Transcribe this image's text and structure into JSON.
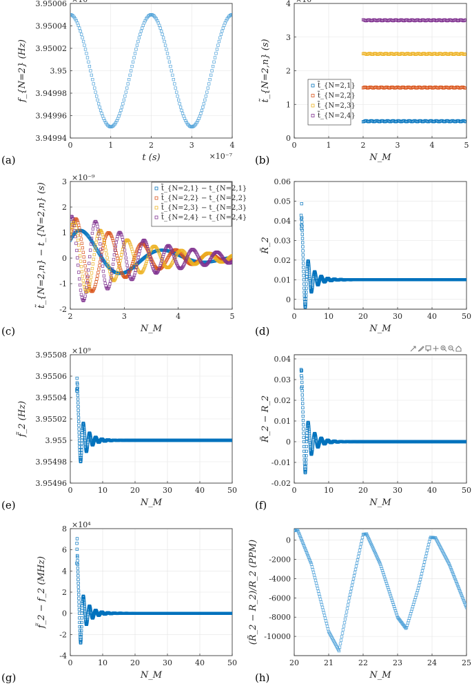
{
  "toolbar": {
    "icons": [
      "export-icon",
      "brush-icon",
      "data-tips-icon",
      "pan-icon",
      "zoom-in-icon",
      "zoom-out-icon",
      "home-icon"
    ]
  },
  "chart_data": [
    {
      "id": "a",
      "panel_label": "(a)",
      "type": "scatter",
      "xlabel": "t (s)",
      "ylabel": "f_{N=2} (Hz)",
      "x_exponent": "×10⁻⁷",
      "y_exponent": "×10⁹",
      "xlim": [
        0,
        4
      ],
      "ylim": [
        3.94994,
        3.95006
      ],
      "xticks": [
        0,
        1,
        2,
        3,
        4
      ],
      "xticklabels": [
        "0",
        "1",
        "2",
        "3",
        "4"
      ],
      "yticks": [
        3.94994,
        3.94996,
        3.94998,
        3.95,
        3.95002,
        3.95004,
        3.95006
      ],
      "yticklabels": [
        "3.94994",
        "3.94996",
        "3.94998",
        "3.95",
        "3.95002",
        "3.95004",
        "3.95006"
      ],
      "series": [
        {
          "color": "#4a9fd8",
          "description": "cosine, center 3.95, amplitude 0.00005, period 2 (×10⁻⁷ s), max at t=0",
          "x": [
            0,
            0.1,
            0.2,
            0.3,
            0.4,
            0.5,
            0.6,
            0.7,
            0.8,
            0.9,
            1.0,
            1.1,
            1.2,
            1.3,
            1.4,
            1.5,
            1.6,
            1.7,
            1.8,
            1.9,
            2.0,
            2.1,
            2.2,
            2.3,
            2.4,
            2.5,
            2.6,
            2.7,
            2.8,
            2.9,
            3.0,
            3.1,
            3.2,
            3.3,
            3.4,
            3.5,
            3.6,
            3.7,
            3.8,
            3.9,
            4.0
          ],
          "y": [
            3.95005,
            3.950048,
            3.95004,
            3.950029,
            3.950015,
            3.95,
            3.949985,
            3.949971,
            3.94996,
            3.949952,
            3.94995,
            3.949952,
            3.94996,
            3.949971,
            3.949985,
            3.95,
            3.950015,
            3.950029,
            3.95004,
            3.950048,
            3.95005,
            3.950048,
            3.95004,
            3.950029,
            3.950015,
            3.95,
            3.949985,
            3.949971,
            3.94996,
            3.949952,
            3.94995,
            3.949952,
            3.94996,
            3.949971,
            3.949985,
            3.95,
            3.950015,
            3.950029,
            3.95004,
            3.950048,
            3.95005
          ]
        }
      ]
    },
    {
      "id": "b",
      "panel_label": "(b)",
      "type": "scatter",
      "xlabel": "N_M",
      "ylabel": "t̃_{N=2,n} (s)",
      "y_exponent": "×10⁻⁷",
      "xlim": [
        0,
        5
      ],
      "ylim": [
        0,
        4
      ],
      "xticks": [
        0,
        1,
        2,
        3,
        4,
        5
      ],
      "xticklabels": [
        "0",
        "1",
        "2",
        "3",
        "4",
        "5"
      ],
      "yticks": [
        0,
        1,
        2,
        3,
        4
      ],
      "yticklabels": [
        "0",
        "1",
        "2",
        "3",
        "4"
      ],
      "legend": {
        "location": "middle-left"
      },
      "series": [
        {
          "name": "t̃_{N=2,1}",
          "color": "#0072bd",
          "x_range": [
            2,
            5
          ],
          "value": 0.5
        },
        {
          "name": "t̃_{N=2,2}",
          "color": "#d95319",
          "x_range": [
            2,
            5
          ],
          "value": 1.5
        },
        {
          "name": "t̃_{N=2,3}",
          "color": "#edb120",
          "x_range": [
            2,
            5
          ],
          "value": 2.5
        },
        {
          "name": "t̃_{N=2,4}",
          "color": "#7e2f8e",
          "x_range": [
            2,
            5
          ],
          "value": 3.5
        }
      ]
    },
    {
      "id": "c",
      "panel_label": "(c)",
      "type": "scatter",
      "xlabel": "N_M",
      "ylabel": "t̃_{N=2,n} − t_{N=2,n} (s)",
      "y_exponent": "×10⁻⁹",
      "xlim": [
        2,
        5
      ],
      "ylim": [
        -2,
        3
      ],
      "xticks": [
        2,
        3,
        4,
        5
      ],
      "xticklabels": [
        "2",
        "3",
        "4",
        "5"
      ],
      "yticks": [
        -2,
        -1,
        0,
        1,
        2,
        3
      ],
      "yticklabels": [
        "-2",
        "-1",
        "0",
        "1",
        "2",
        "3"
      ],
      "legend": {
        "location": "top-right"
      },
      "series": [
        {
          "name": "t̃_{N=2,1} − t_{N=2,1}",
          "color": "#0072bd",
          "amplitude": 1.35,
          "period": 1.55,
          "decay": 0.85,
          "phase_peak_at": 2.2
        },
        {
          "name": "t̃_{N=2,2} − t_{N=2,2}",
          "color": "#d95319",
          "amplitude": 1.9,
          "period": 0.62,
          "decay": 0.9,
          "phase_peak_at": 2.1
        },
        {
          "name": "t̃_{N=2,3} − t_{N=2,3}",
          "color": "#edb120",
          "amplitude": 1.75,
          "period": 0.5,
          "decay": 0.85,
          "phase_peak_at": 2.06
        },
        {
          "name": "t̃_{N=2,4} − t_{N=2,4}",
          "color": "#7e2f8e",
          "amplitude": 2.1,
          "period": 0.45,
          "decay": 0.8,
          "phase_peak_at": 2.02
        }
      ]
    },
    {
      "id": "d",
      "panel_label": "(d)",
      "type": "scatter",
      "xlabel": "N_M",
      "ylabel": "R̃_2",
      "xlim": [
        0,
        50
      ],
      "ylim": [
        -0.005,
        0.06
      ],
      "xticks": [
        0,
        10,
        20,
        30,
        40,
        50
      ],
      "xticklabels": [
        "0",
        "10",
        "20",
        "30",
        "40",
        "50"
      ],
      "yticks": [
        0,
        0.01,
        0.02,
        0.03,
        0.04,
        0.05,
        0.06
      ],
      "yticklabels": [
        "0",
        "0.01",
        "0.02",
        "0.03",
        "0.04",
        "0.05",
        "0.06"
      ],
      "series": [
        {
          "color": "#0072bd",
          "steady_value": 0.01,
          "peak": 0.052,
          "trough": -0.004,
          "x_start": 2,
          "x_end": 50
        }
      ]
    },
    {
      "id": "e",
      "panel_label": "(e)",
      "type": "scatter",
      "xlabel": "N_M",
      "ylabel": "f̃_2 (Hz)",
      "y_exponent": "×10⁹",
      "xlim": [
        0,
        50
      ],
      "ylim": [
        3.95496,
        3.95508
      ],
      "xticks": [
        0,
        10,
        20,
        30,
        40,
        50
      ],
      "xticklabels": [
        "0",
        "10",
        "20",
        "30",
        "40",
        "50"
      ],
      "yticks": [
        3.95496,
        3.95498,
        3.955,
        3.95502,
        3.95504,
        3.95506,
        3.95508
      ],
      "yticklabels": [
        "3.95496",
        "3.95498",
        "3.955",
        "3.95502",
        "3.95504",
        "3.95506",
        "3.95508"
      ],
      "series": [
        {
          "color": "#0072bd",
          "steady_value": 3.955,
          "peak": 3.95507,
          "trough": 3.95498,
          "x_start": 2,
          "x_end": 50
        }
      ]
    },
    {
      "id": "f",
      "panel_label": "(f)",
      "type": "scatter",
      "xlabel": "N_M",
      "ylabel": "R̃_2 − R_2",
      "xlim": [
        0,
        50
      ],
      "ylim": [
        -0.02,
        0.042
      ],
      "xticks": [
        0,
        10,
        20,
        30,
        40,
        50
      ],
      "xticklabels": [
        "0",
        "10",
        "20",
        "30",
        "40",
        "50"
      ],
      "yticks": [
        -0.02,
        -0.01,
        0,
        0.01,
        0.02,
        0.03,
        0.04
      ],
      "yticklabels": [
        "-0.02",
        "-0.01",
        "0",
        "0.01",
        "0.02",
        "0.03",
        "0.04"
      ],
      "series": [
        {
          "color": "#0072bd",
          "steady_value": 0,
          "peak": 0.041,
          "trough": -0.015,
          "x_start": 2,
          "x_end": 50
        }
      ]
    },
    {
      "id": "g",
      "panel_label": "(g)",
      "type": "scatter",
      "xlabel": "N_M",
      "ylabel": "f̃_2 − f_2 (MHz)",
      "y_exponent": "×10⁴",
      "xlim": [
        0,
        50
      ],
      "ylim": [
        -4,
        8
      ],
      "xticks": [
        0,
        10,
        20,
        30,
        40,
        50
      ],
      "xticklabels": [
        "0",
        "10",
        "20",
        "30",
        "40",
        "50"
      ],
      "yticks": [
        -4,
        -2,
        0,
        2,
        4,
        6,
        8
      ],
      "yticklabels": [
        "-4",
        "-2",
        "0",
        "2",
        "4",
        "6",
        "8"
      ],
      "series": [
        {
          "color": "#0072bd",
          "steady_value": 0,
          "peak": 7.1,
          "trough": -2.8,
          "x_start": 2,
          "x_end": 50
        }
      ]
    },
    {
      "id": "h",
      "panel_label": "(h)",
      "type": "scatter",
      "xlabel": "N_M",
      "ylabel": "(R̃_2 − R_2)/R_2 (PPM)",
      "xlim": [
        20,
        25
      ],
      "ylim": [
        -12000,
        1200
      ],
      "xticks": [
        20,
        21,
        22,
        23,
        24,
        25
      ],
      "xticklabels": [
        "20",
        "21",
        "22",
        "23",
        "24",
        "25"
      ],
      "yticks": [
        -10000,
        -8000,
        -6000,
        -4000,
        -2000,
        0
      ],
      "yticklabels": [
        "-10000",
        "-8000",
        "-6000",
        "-4000",
        "-2000",
        "0"
      ],
      "series": [
        {
          "color": "#4a9fd8",
          "description": "sawtooth-like oscillation with slowly rising peaks and troughs",
          "x": [
            20.0,
            20.1,
            20.5,
            21.0,
            21.3,
            21.6,
            22.0,
            22.1,
            22.5,
            23.0,
            23.25,
            23.6,
            23.95,
            24.1,
            24.5,
            25.0
          ],
          "y": [
            1000,
            1050,
            -2500,
            -9500,
            -11500,
            -6000,
            600,
            650,
            -2500,
            -8000,
            -9200,
            -5000,
            300,
            250,
            -2500,
            -7000
          ]
        }
      ]
    }
  ]
}
